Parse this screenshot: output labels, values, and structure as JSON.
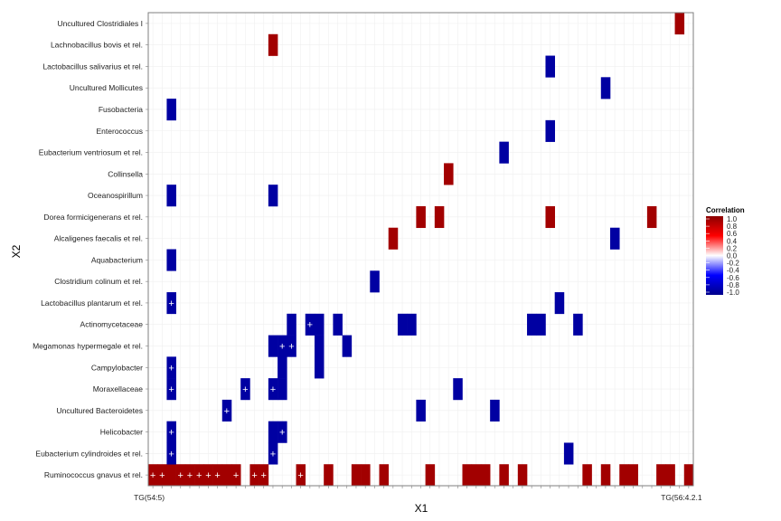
{
  "chart_data": {
    "type": "heatmap",
    "xlabel": "X1",
    "ylabel": "X2",
    "x_first_tick": "TG(54:5)",
    "x_last_tick": "TG(56:4.2.1",
    "n_x": 59,
    "y_categories": [
      "Ruminococcus gnavus et rel.",
      "Eubacterium cylindroides et rel.",
      "Helicobacter",
      "Uncultured Bacteroidetes",
      "Moraxellaceae",
      "Campylobacter",
      "Megamonas hypermegale et rel.",
      "Actinomycetaceae",
      "Lactobacillus plantarum et rel.",
      "Clostridium colinum et rel.",
      "Aquabacterium",
      "Alcaligenes faecalis et rel.",
      "Dorea formicigenerans et rel.",
      "Oceanospirillum",
      "Collinsella",
      "Eubacterium ventriosum et rel.",
      "Enterococcus",
      "Fusobacteria",
      "Uncultured Mollicutes",
      "Lactobacillus salivarius et rel.",
      "Lachnobacillus bovis et rel.",
      "Uncultured Clostridiales I"
    ],
    "cells": [
      {
        "x": 0,
        "y": 0,
        "value": 0.9,
        "plus": true
      },
      {
        "x": 1,
        "y": 0,
        "value": 0.9,
        "plus": true
      },
      {
        "x": 2,
        "y": 0,
        "value": 0.9
      },
      {
        "x": 3,
        "y": 0,
        "value": 0.9,
        "plus": true
      },
      {
        "x": 4,
        "y": 0,
        "value": 0.9,
        "plus": true
      },
      {
        "x": 5,
        "y": 0,
        "value": 0.9,
        "plus": true
      },
      {
        "x": 6,
        "y": 0,
        "value": 0.9,
        "plus": true
      },
      {
        "x": 7,
        "y": 0,
        "value": 0.9,
        "plus": true
      },
      {
        "x": 8,
        "y": 0,
        "value": 0.9
      },
      {
        "x": 9,
        "y": 0,
        "value": 0.9,
        "plus": true
      },
      {
        "x": 11,
        "y": 0,
        "value": 0.9,
        "plus": true
      },
      {
        "x": 12,
        "y": 0,
        "value": 0.9,
        "plus": true
      },
      {
        "x": 16,
        "y": 0,
        "value": 0.9,
        "plus": true
      },
      {
        "x": 19,
        "y": 0,
        "value": 0.9
      },
      {
        "x": 22,
        "y": 0,
        "value": 0.9
      },
      {
        "x": 23,
        "y": 0,
        "value": 0.9
      },
      {
        "x": 25,
        "y": 0,
        "value": 0.9
      },
      {
        "x": 30,
        "y": 0,
        "value": 0.9
      },
      {
        "x": 34,
        "y": 0,
        "value": 0.9
      },
      {
        "x": 35,
        "y": 0,
        "value": 0.9
      },
      {
        "x": 36,
        "y": 0,
        "value": 0.9
      },
      {
        "x": 38,
        "y": 0,
        "value": 0.9
      },
      {
        "x": 40,
        "y": 0,
        "value": 0.9
      },
      {
        "x": 47,
        "y": 0,
        "value": 0.9
      },
      {
        "x": 49,
        "y": 0,
        "value": 0.9
      },
      {
        "x": 51,
        "y": 0,
        "value": 0.9
      },
      {
        "x": 52,
        "y": 0,
        "value": 0.9
      },
      {
        "x": 55,
        "y": 0,
        "value": 0.9
      },
      {
        "x": 56,
        "y": 0,
        "value": 0.9
      },
      {
        "x": 58,
        "y": 0,
        "value": 0.9
      },
      {
        "x": 2,
        "y": 1,
        "value": -0.9,
        "plus": true
      },
      {
        "x": 13,
        "y": 1,
        "value": -0.9,
        "plus": true
      },
      {
        "x": 45,
        "y": 1,
        "value": -0.9
      },
      {
        "x": 2,
        "y": 2,
        "value": -0.9,
        "plus": true
      },
      {
        "x": 13,
        "y": 2,
        "value": -0.9
      },
      {
        "x": 14,
        "y": 2,
        "value": -0.9,
        "plus": true
      },
      {
        "x": 8,
        "y": 3,
        "value": -0.9,
        "plus": true
      },
      {
        "x": 29,
        "y": 3,
        "value": -0.9
      },
      {
        "x": 37,
        "y": 3,
        "value": -0.9
      },
      {
        "x": 2,
        "y": 4,
        "value": -0.9,
        "plus": true
      },
      {
        "x": 10,
        "y": 4,
        "value": -0.9,
        "plus": true
      },
      {
        "x": 13,
        "y": 4,
        "value": -0.9,
        "plus": true
      },
      {
        "x": 14,
        "y": 4,
        "value": -0.9
      },
      {
        "x": 33,
        "y": 4,
        "value": -0.9
      },
      {
        "x": 2,
        "y": 5,
        "value": -0.9,
        "plus": true
      },
      {
        "x": 14,
        "y": 5,
        "value": -0.9
      },
      {
        "x": 18,
        "y": 5,
        "value": -0.9
      },
      {
        "x": 13,
        "y": 6,
        "value": -0.9
      },
      {
        "x": 14,
        "y": 6,
        "value": -0.9,
        "plus": true
      },
      {
        "x": 15,
        "y": 6,
        "value": -0.9,
        "plus": true
      },
      {
        "x": 18,
        "y": 6,
        "value": -0.9
      },
      {
        "x": 21,
        "y": 6,
        "value": -0.9
      },
      {
        "x": 15,
        "y": 7,
        "value": -0.9
      },
      {
        "x": 17,
        "y": 7,
        "value": -0.9,
        "plus": true
      },
      {
        "x": 18,
        "y": 7,
        "value": -0.9
      },
      {
        "x": 20,
        "y": 7,
        "value": -0.9
      },
      {
        "x": 27,
        "y": 7,
        "value": -0.9
      },
      {
        "x": 28,
        "y": 7,
        "value": -0.9
      },
      {
        "x": 41,
        "y": 7,
        "value": -0.9
      },
      {
        "x": 42,
        "y": 7,
        "value": -0.9
      },
      {
        "x": 46,
        "y": 7,
        "value": -0.9
      },
      {
        "x": 2,
        "y": 8,
        "value": -0.9,
        "plus": true
      },
      {
        "x": 44,
        "y": 8,
        "value": -0.9
      },
      {
        "x": 24,
        "y": 9,
        "value": -0.9
      },
      {
        "x": 2,
        "y": 10,
        "value": -0.9
      },
      {
        "x": 26,
        "y": 11,
        "value": 0.9
      },
      {
        "x": 50,
        "y": 11,
        "value": -0.9
      },
      {
        "x": 29,
        "y": 12,
        "value": 0.9
      },
      {
        "x": 31,
        "y": 12,
        "value": 0.9
      },
      {
        "x": 43,
        "y": 12,
        "value": 0.9
      },
      {
        "x": 54,
        "y": 12,
        "value": 0.9
      },
      {
        "x": 2,
        "y": 13,
        "value": -0.9
      },
      {
        "x": 13,
        "y": 13,
        "value": -0.9
      },
      {
        "x": 32,
        "y": 14,
        "value": 0.9
      },
      {
        "x": 38,
        "y": 15,
        "value": -0.9
      },
      {
        "x": 43,
        "y": 16,
        "value": -0.9
      },
      {
        "x": 2,
        "y": 17,
        "value": -0.9
      },
      {
        "x": 49,
        "y": 18,
        "value": -0.9
      },
      {
        "x": 43,
        "y": 19,
        "value": -0.9
      },
      {
        "x": 13,
        "y": 20,
        "value": 0.9
      },
      {
        "x": 57,
        "y": 21,
        "value": 0.9
      }
    ],
    "legend": {
      "title": "Correlation",
      "breaks": [
        "1.0",
        "0.8",
        "0.6",
        "0.4",
        "0.2",
        "0.0",
        "-0.2",
        "-0.4",
        "-0.6",
        "-0.8",
        "-1.0"
      ],
      "colors": {
        "high": "#8b0000",
        "mid_high": "#ff0000",
        "mid": "#ffffff",
        "mid_low": "#0000ff",
        "low": "#00008b"
      },
      "placement": "right"
    },
    "panel_background": "#ffffff",
    "grid": true
  }
}
